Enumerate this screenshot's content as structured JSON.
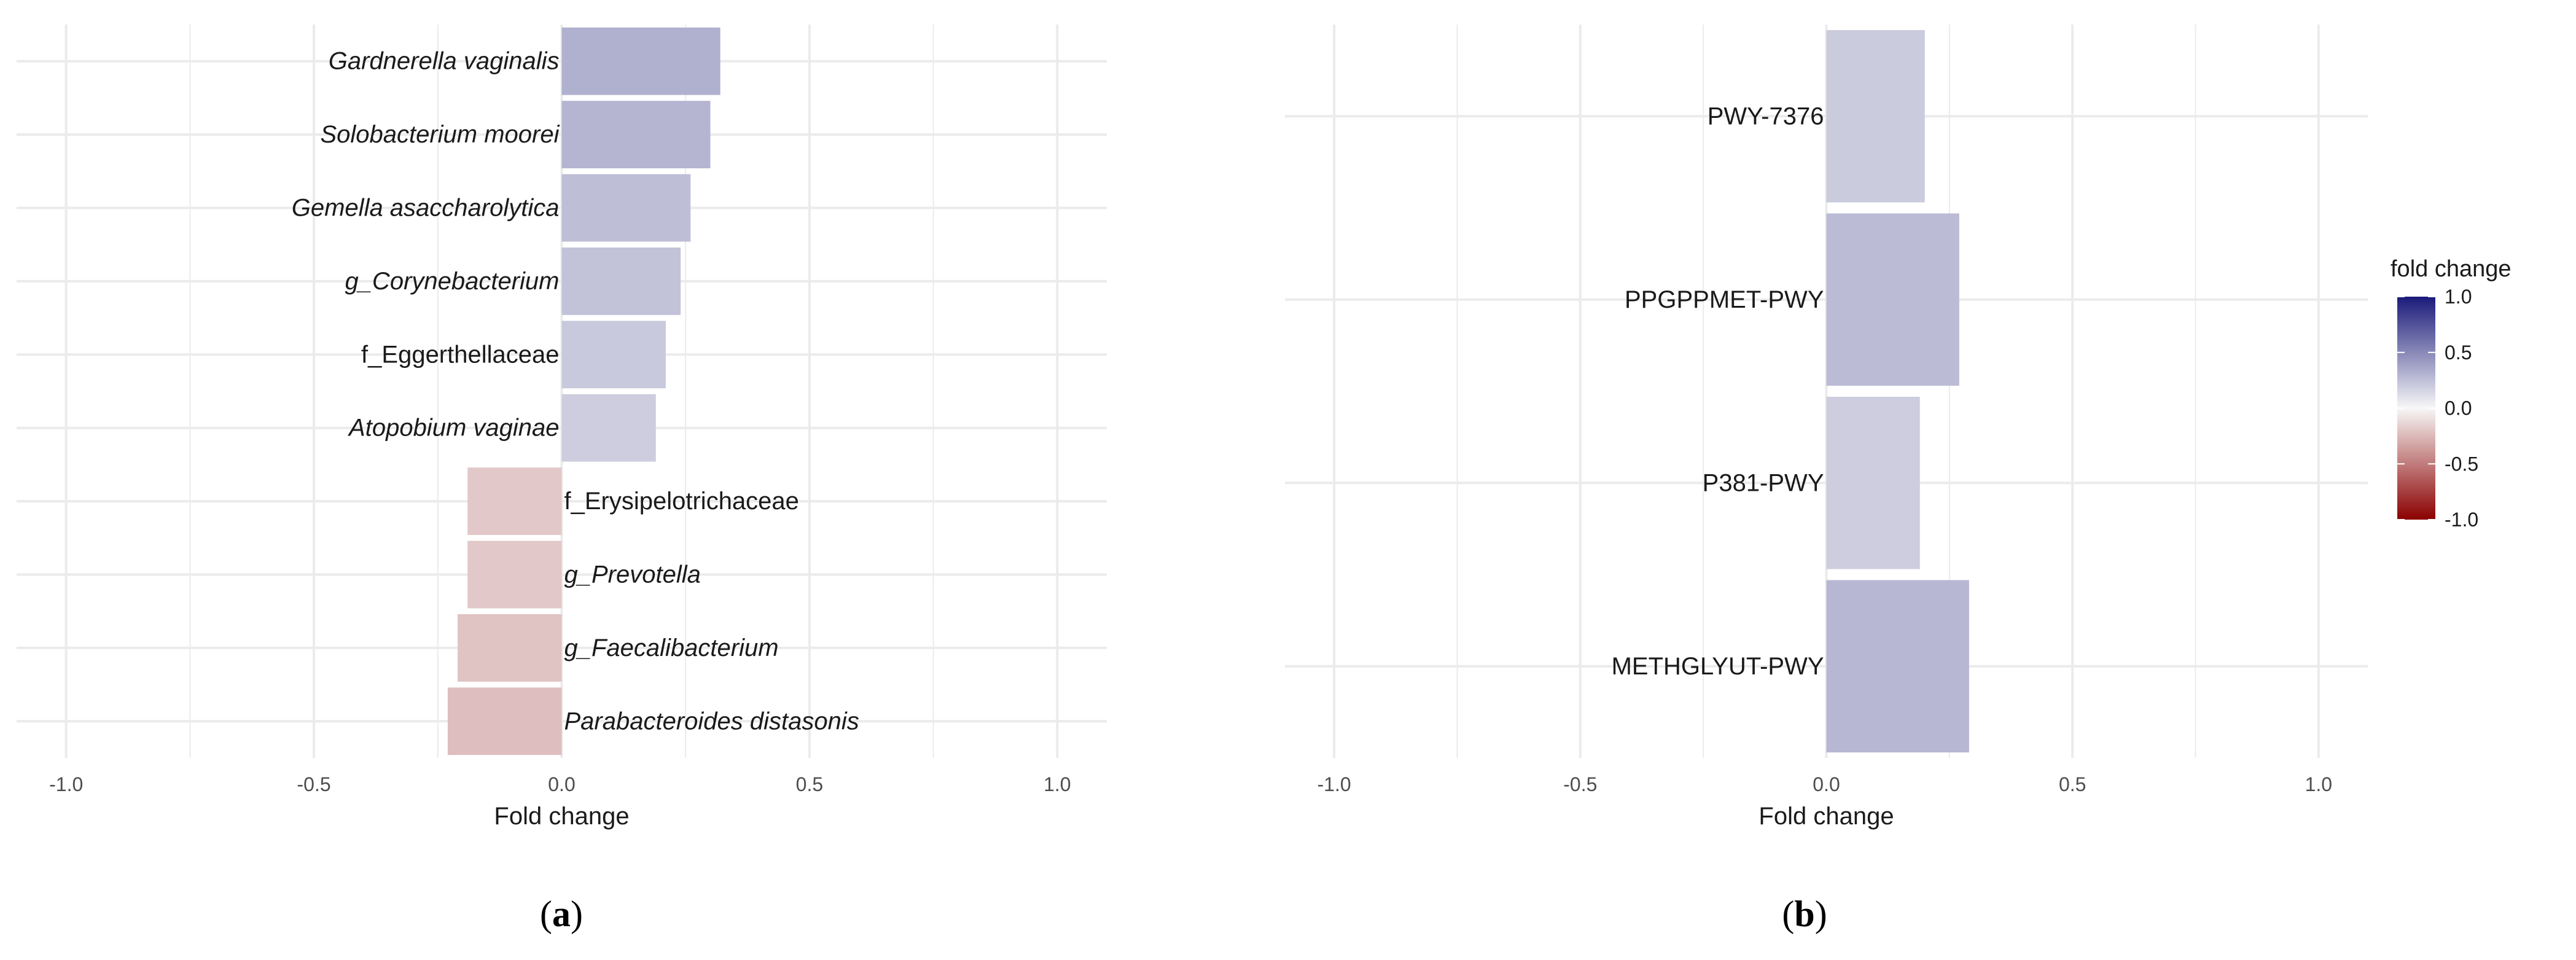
{
  "chart_data": [
    {
      "type": "bar",
      "orientation": "horizontal",
      "panel_label": "a",
      "xlabel": "Fold change",
      "ylabel": "",
      "xlim": [
        -1.1,
        1.1
      ],
      "x_ticks": [
        -1.0,
        -0.5,
        0.0,
        0.5,
        1.0
      ],
      "x_tick_labels": [
        "-1.0",
        "-0.5",
        "0.0",
        "0.5",
        "1.0"
      ],
      "grid": true,
      "categories": [
        {
          "label": "Gardnerella vaginalis",
          "italic": true
        },
        {
          "label": "Solobacterium moorei",
          "italic": true
        },
        {
          "label": "Gemella asaccharolytica",
          "italic": true
        },
        {
          "label": "g_Corynebacterium",
          "italic": true
        },
        {
          "label": "f_Eggerthellaceae",
          "italic": false
        },
        {
          "label": "Atopobium vaginae",
          "italic": true
        },
        {
          "label": "f_Erysipelotrichaceae",
          "italic": false
        },
        {
          "label": "g_Prevotella",
          "italic": true
        },
        {
          "label": "g_Faecalibacterium",
          "italic": true
        },
        {
          "label": "Parabacteroides distasonis",
          "italic": true
        }
      ],
      "values": [
        0.32,
        0.3,
        0.26,
        0.24,
        0.21,
        0.19,
        -0.19,
        -0.19,
        -0.21,
        -0.23
      ]
    },
    {
      "type": "bar",
      "orientation": "horizontal",
      "panel_label": "b",
      "xlabel": "Fold change",
      "ylabel": "",
      "xlim": [
        -1.1,
        1.1
      ],
      "x_ticks": [
        -1.0,
        -0.5,
        0.0,
        0.5,
        1.0
      ],
      "x_tick_labels": [
        "-1.0",
        "-0.5",
        "0.0",
        "0.5",
        "1.0"
      ],
      "grid": true,
      "categories": [
        {
          "label": "PWY-7376",
          "italic": false
        },
        {
          "label": "PPGPPMET-PWY",
          "italic": false
        },
        {
          "label": "P381-PWY",
          "italic": false
        },
        {
          "label": "METHGLYUT-PWY",
          "italic": false
        }
      ],
      "values": [
        0.2,
        0.27,
        0.19,
        0.29
      ]
    }
  ],
  "legend": {
    "title": "fold change",
    "placement": "right",
    "tick_values": [
      1.0,
      0.5,
      0.0,
      -0.5,
      -1.0
    ],
    "tick_labels": [
      "1.0",
      "0.5",
      "0.0",
      "-0.5",
      "-1.0"
    ],
    "colors": {
      "high": "#1a1a7a",
      "mid": "#f7f7f7",
      "low": "#8b0000"
    }
  },
  "colors": {
    "grid": "#ebebeb",
    "background": "#ffffff"
  }
}
